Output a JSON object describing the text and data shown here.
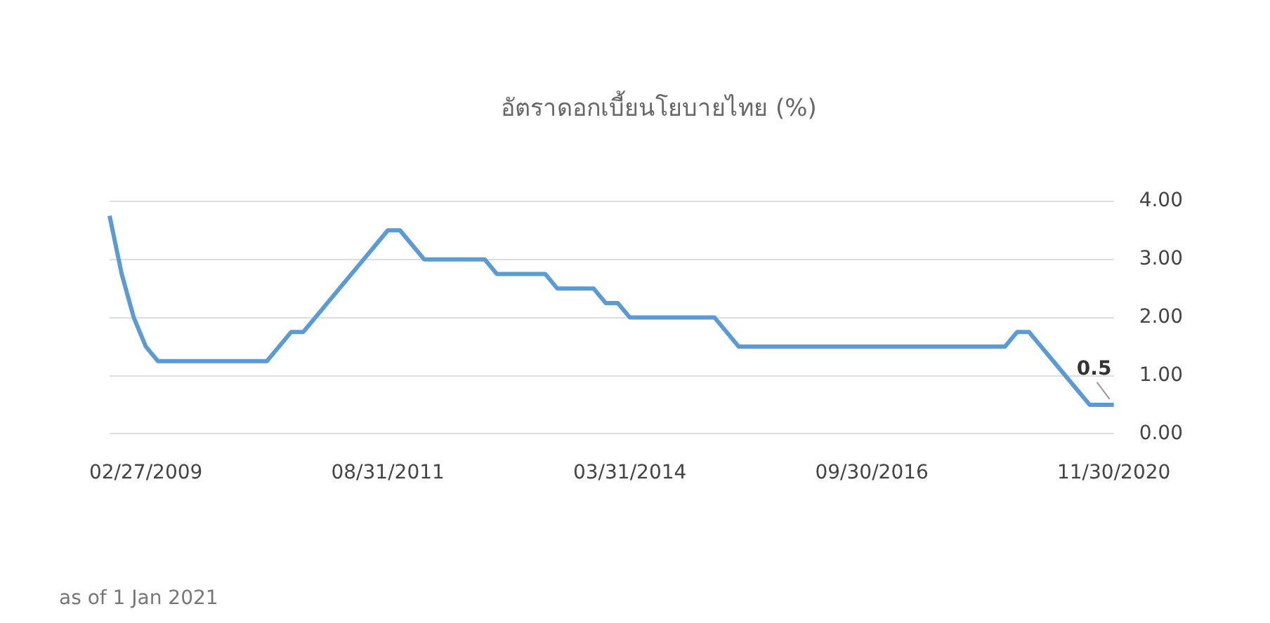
{
  "chart_data": {
    "type": "line",
    "title": "อัตราดอกเบี้ยนโยบายไทย (%)",
    "categories": [
      null,
      null,
      null,
      "02/27/2009",
      null,
      null,
      null,
      null,
      null,
      null,
      null,
      null,
      null,
      null,
      null,
      null,
      null,
      null,
      null,
      null,
      null,
      null,
      null,
      "08/31/2011",
      null,
      null,
      null,
      null,
      null,
      null,
      null,
      null,
      null,
      null,
      null,
      null,
      null,
      null,
      null,
      null,
      null,
      null,
      null,
      "03/31/2014",
      null,
      null,
      null,
      null,
      null,
      null,
      null,
      null,
      null,
      null,
      null,
      null,
      null,
      null,
      null,
      null,
      null,
      null,
      null,
      "09/30/2016",
      null,
      null,
      null,
      null,
      null,
      null,
      null,
      null,
      null,
      null,
      null,
      null,
      null,
      null,
      null,
      null,
      null,
      null,
      null,
      "11/30/2020"
    ],
    "series": [
      {
        "color": "#5b9bd5",
        "values": [
          3.75,
          2.75,
          2.0,
          1.5,
          1.25,
          1.25,
          1.25,
          1.25,
          1.25,
          1.25,
          1.25,
          1.25,
          1.25,
          1.25,
          1.5,
          1.75,
          1.75,
          2.0,
          2.25,
          2.5,
          2.75,
          3.0,
          3.25,
          3.5,
          3.5,
          3.25,
          3.0,
          3.0,
          3.0,
          3.0,
          3.0,
          3.0,
          2.75,
          2.75,
          2.75,
          2.75,
          2.75,
          2.5,
          2.5,
          2.5,
          2.5,
          2.25,
          2.25,
          2.0,
          2.0,
          2.0,
          2.0,
          2.0,
          2.0,
          2.0,
          2.0,
          1.75,
          1.5,
          1.5,
          1.5,
          1.5,
          1.5,
          1.5,
          1.5,
          1.5,
          1.5,
          1.5,
          1.5,
          1.5,
          1.5,
          1.5,
          1.5,
          1.5,
          1.5,
          1.5,
          1.5,
          1.5,
          1.5,
          1.5,
          1.5,
          1.75,
          1.75,
          1.5,
          1.25,
          1.0,
          0.75,
          0.5,
          0.5,
          0.5
        ]
      }
    ],
    "ylim": [
      0,
      4
    ],
    "yticks": [
      {
        "value": 0,
        "label": "0.00"
      },
      {
        "value": 1,
        "label": "1.00"
      },
      {
        "value": 2,
        "label": "2.00"
      },
      {
        "value": 3,
        "label": "3.00"
      },
      {
        "value": 4,
        "label": "4.00"
      }
    ],
    "grid": "y",
    "marker": "none",
    "line_style": "solid",
    "annotations": [
      {
        "text": "0.5",
        "x": "11/30/2020",
        "y": 0.5
      },
      "as of 1 Jan 2021"
    ]
  }
}
